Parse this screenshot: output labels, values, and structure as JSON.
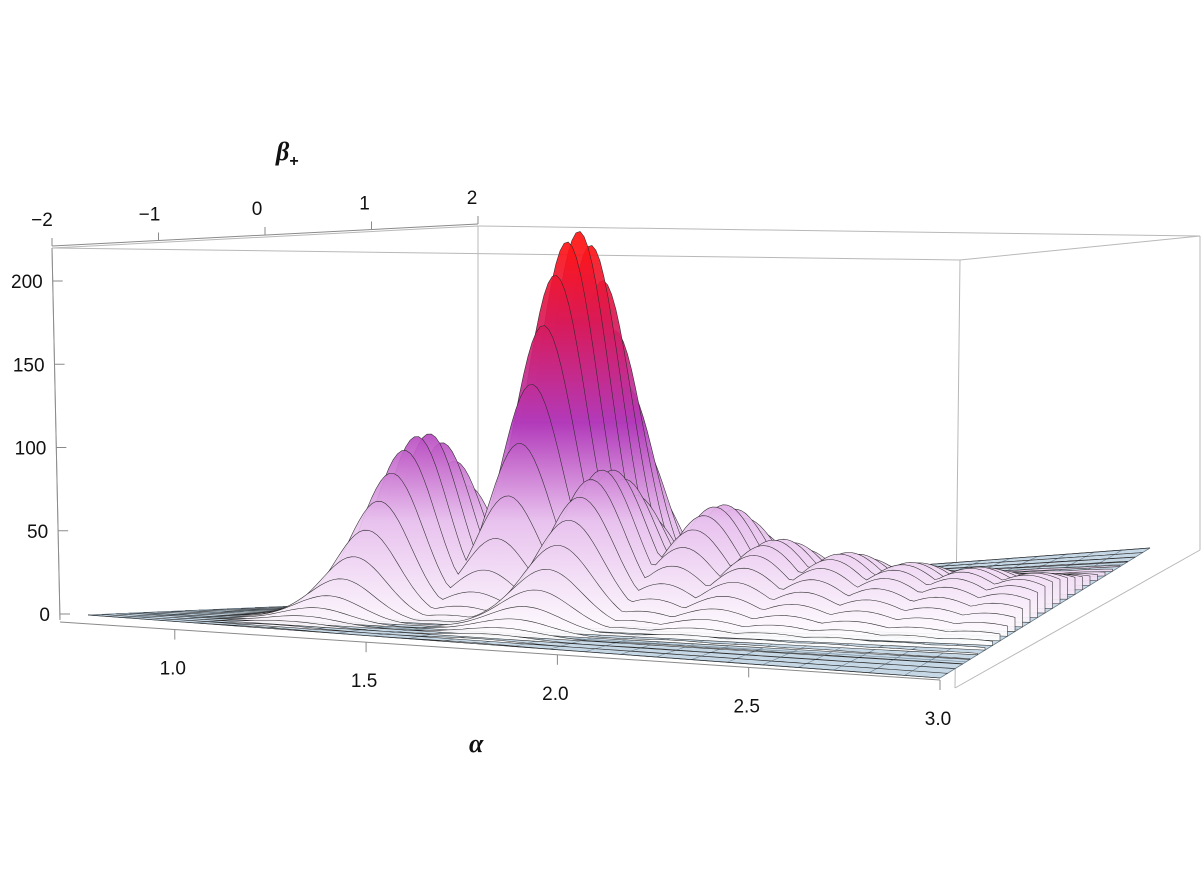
{
  "chart_data": {
    "type": "surface3d",
    "title": "",
    "axes": {
      "x": {
        "label": "α",
        "range": [
          0.7,
          3.0
        ],
        "ticks": [
          "1.0",
          "1.5",
          "2.0",
          "2.5",
          "3.0"
        ],
        "tick_values": [
          1.0,
          1.5,
          2.0,
          2.5,
          3.0
        ]
      },
      "y": {
        "label": "β",
        "label_sub": "+",
        "range": [
          -2,
          2
        ],
        "ticks": [
          "−2",
          "−1",
          "0",
          "1",
          "2"
        ],
        "tick_values": [
          -2,
          -1,
          0,
          1,
          2
        ]
      },
      "z": {
        "label": "",
        "range": [
          0,
          220
        ],
        "ticks": [
          "0",
          "50",
          "100",
          "150",
          "200"
        ],
        "tick_values": [
          0,
          50,
          100,
          150,
          200
        ]
      }
    },
    "grid": true,
    "boxed": true,
    "colors": {
      "base": "#c9dbe8",
      "low": "#ffffff",
      "mid": "#a81ea8",
      "peak": "#ff1010"
    },
    "peaks": [
      {
        "alpha": 1.18,
        "beta": -0.2,
        "height": 105
      },
      {
        "alpha": 1.45,
        "beta": 0.55,
        "height": 220
      },
      {
        "alpha": 1.73,
        "beta": -0.25,
        "height": 86
      },
      {
        "alpha": 1.97,
        "beta": 0.2,
        "height": 60
      },
      {
        "alpha": 2.18,
        "beta": 0.0,
        "height": 42
      },
      {
        "alpha": 2.38,
        "beta": 0.0,
        "height": 34
      },
      {
        "alpha": 2.57,
        "beta": 0.0,
        "height": 28
      },
      {
        "alpha": 2.75,
        "beta": 0.05,
        "height": 24
      },
      {
        "alpha": 2.92,
        "beta": 0.05,
        "height": 20
      }
    ]
  }
}
